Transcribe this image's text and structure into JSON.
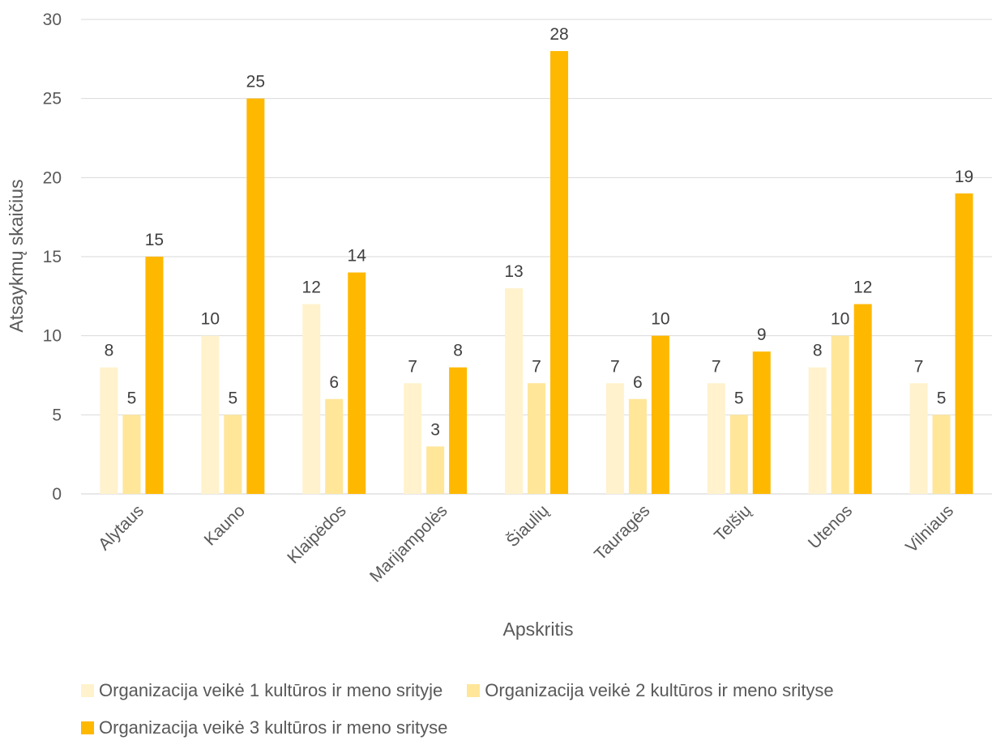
{
  "chart_data": {
    "type": "bar",
    "title": "",
    "xlabel": "Apskritis",
    "ylabel": "Atsaykmų skaičius",
    "ylim": [
      0,
      30
    ],
    "yticks": [
      0,
      5,
      10,
      15,
      20,
      25,
      30
    ],
    "grid": true,
    "legend_position": "bottom",
    "categories": [
      "Alytaus",
      "Kauno",
      "Klaipėdos",
      "Marijampolės",
      "Šiaulių",
      "Tauragės",
      "Telšių",
      "Utenos",
      "Vilniaus"
    ],
    "series": [
      {
        "name": "Organizacija veikė 1 kultūros ir meno srityje",
        "color": "#FFF2CC",
        "values": [
          8,
          10,
          12,
          7,
          13,
          7,
          7,
          8,
          7
        ]
      },
      {
        "name": "Organizacija veikė 2 kultūros ir meno srityse",
        "color": "#FFE699",
        "values": [
          5,
          5,
          6,
          3,
          7,
          6,
          5,
          10,
          5
        ]
      },
      {
        "name": "Organizacija veikė 3 kultūros ir meno srityse",
        "color": "#FFB800",
        "values": [
          15,
          25,
          14,
          8,
          28,
          10,
          9,
          12,
          19
        ]
      }
    ]
  }
}
